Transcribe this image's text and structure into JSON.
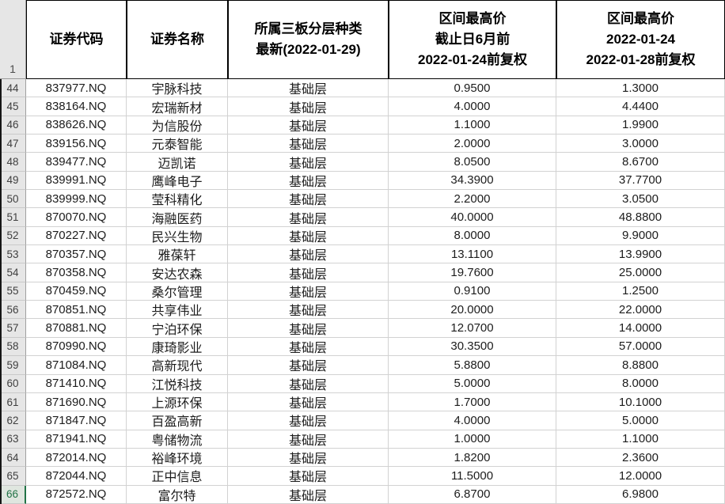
{
  "sheet": {
    "corner_row_number": "1",
    "selected_row": "66",
    "columns": [
      "row_number",
      "证券代码",
      "证券名称",
      "所属三板分层种类",
      "区间最高价(截止日6月前)",
      "区间最高价(区间)"
    ],
    "headers": [
      [
        "证券代码"
      ],
      [
        "证券名称"
      ],
      [
        "所属三板分层种类",
        "最新(2022-01-29)"
      ],
      [
        "区间最高价",
        "截止日6月前",
        "2022-01-24前复权"
      ],
      [
        "区间最高价",
        "2022-01-24",
        "2022-01-28前复权"
      ]
    ],
    "accent_green": "#217346",
    "rows": [
      {
        "n": "44",
        "code": "837977.NQ",
        "name": "宇脉科技",
        "layer": "基础层",
        "high6m": "0.9500",
        "highw": "1.3000"
      },
      {
        "n": "45",
        "code": "838164.NQ",
        "name": "宏瑞新材",
        "layer": "基础层",
        "high6m": "4.0000",
        "highw": "4.4400"
      },
      {
        "n": "46",
        "code": "838626.NQ",
        "name": "为信股份",
        "layer": "基础层",
        "high6m": "1.1000",
        "highw": "1.9900"
      },
      {
        "n": "47",
        "code": "839156.NQ",
        "name": "元泰智能",
        "layer": "基础层",
        "high6m": "2.0000",
        "highw": "3.0000"
      },
      {
        "n": "48",
        "code": "839477.NQ",
        "name": "迈凯诺",
        "layer": "基础层",
        "high6m": "8.0500",
        "highw": "8.6700"
      },
      {
        "n": "49",
        "code": "839991.NQ",
        "name": "鹰峰电子",
        "layer": "基础层",
        "high6m": "34.3900",
        "highw": "37.7700"
      },
      {
        "n": "50",
        "code": "839999.NQ",
        "name": "莹科精化",
        "layer": "基础层",
        "high6m": "2.2000",
        "highw": "3.0500"
      },
      {
        "n": "51",
        "code": "870070.NQ",
        "name": "海融医药",
        "layer": "基础层",
        "high6m": "40.0000",
        "highw": "48.8800"
      },
      {
        "n": "52",
        "code": "870227.NQ",
        "name": "民兴生物",
        "layer": "基础层",
        "high6m": "8.0000",
        "highw": "9.9000"
      },
      {
        "n": "53",
        "code": "870357.NQ",
        "name": "雅葆轩",
        "layer": "基础层",
        "high6m": "13.1100",
        "highw": "13.9900"
      },
      {
        "n": "54",
        "code": "870358.NQ",
        "name": "安达农森",
        "layer": "基础层",
        "high6m": "19.7600",
        "highw": "25.0000"
      },
      {
        "n": "55",
        "code": "870459.NQ",
        "name": "桑尔管理",
        "layer": "基础层",
        "high6m": "0.9100",
        "highw": "1.2500"
      },
      {
        "n": "56",
        "code": "870851.NQ",
        "name": "共享伟业",
        "layer": "基础层",
        "high6m": "20.0000",
        "highw": "22.0000"
      },
      {
        "n": "57",
        "code": "870881.NQ",
        "name": "宁泊环保",
        "layer": "基础层",
        "high6m": "12.0700",
        "highw": "14.0000"
      },
      {
        "n": "58",
        "code": "870990.NQ",
        "name": "康琦影业",
        "layer": "基础层",
        "high6m": "30.3500",
        "highw": "57.0000"
      },
      {
        "n": "59",
        "code": "871084.NQ",
        "name": "高新现代",
        "layer": "基础层",
        "high6m": "5.8800",
        "highw": "8.8800"
      },
      {
        "n": "60",
        "code": "871410.NQ",
        "name": "江悦科技",
        "layer": "基础层",
        "high6m": "5.0000",
        "highw": "8.0000"
      },
      {
        "n": "61",
        "code": "871690.NQ",
        "name": "上源环保",
        "layer": "基础层",
        "high6m": "1.7000",
        "highw": "10.1000"
      },
      {
        "n": "62",
        "code": "871847.NQ",
        "name": "百盈高新",
        "layer": "基础层",
        "high6m": "4.0000",
        "highw": "5.0000"
      },
      {
        "n": "63",
        "code": "871941.NQ",
        "name": "粤储物流",
        "layer": "基础层",
        "high6m": "1.0000",
        "highw": "1.1000"
      },
      {
        "n": "64",
        "code": "872014.NQ",
        "name": "裕峰环境",
        "layer": "基础层",
        "high6m": "1.8200",
        "highw": "2.3600"
      },
      {
        "n": "65",
        "code": "872044.NQ",
        "name": "正中信息",
        "layer": "基础层",
        "high6m": "11.5000",
        "highw": "12.0000"
      },
      {
        "n": "66",
        "code": "872572.NQ",
        "name": "富尔特",
        "layer": "基础层",
        "high6m": "6.8700",
        "highw": "6.9800"
      }
    ]
  }
}
